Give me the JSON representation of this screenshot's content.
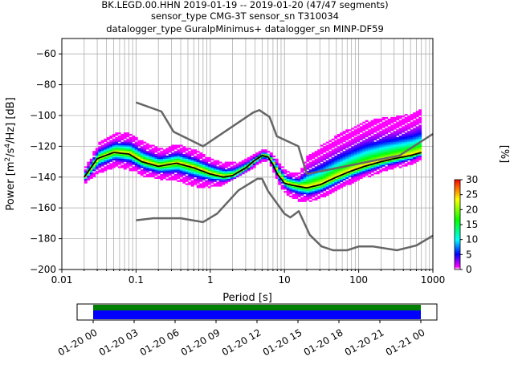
{
  "title": {
    "line1": "BK.LEGD.00.HHN   2019-01-19 -- 2019-01-20  (47/47 segments)",
    "line2": "sensor_type CMG-3T sensor_sn T310034",
    "line3": "datalogger_type GuralpMinimus+ datalogger_sn MINP-DF59"
  },
  "chart_data": [
    {
      "type": "heatmap",
      "title": "BK.LEGD.00.HHN   2019-01-19 -- 2019-01-20  (47/47 segments)",
      "xlabel": "Period [s]",
      "ylabel": "Power [m²/s⁴/Hz] [dB]",
      "x_scale": "log",
      "xlim": [
        0.01,
        1000
      ],
      "ylim": [
        -200,
        -50
      ],
      "x_ticks": [
        "0.01",
        "0.1",
        "1",
        "10",
        "100",
        "1000"
      ],
      "y_ticks": [
        "-200",
        "-180",
        "-160",
        "-140",
        "-120",
        "-100",
        "-80",
        "-60"
      ],
      "grid": true,
      "colorbar": {
        "label": "[%]",
        "range": [
          0,
          30
        ],
        "ticks": [
          "0",
          "5",
          "10",
          "15",
          "20",
          "25",
          "30"
        ],
        "colors": [
          "#ffffff",
          "#ff00ff",
          "#0000ff",
          "#00ffff",
          "#00ff00",
          "#ffff00",
          "#ff0000"
        ]
      },
      "mean_curve": {
        "color": "#000000",
        "x": [
          0.02,
          0.03,
          0.05,
          0.08,
          0.12,
          0.2,
          0.35,
          0.6,
          1.0,
          1.5,
          2.0,
          3.0,
          4.0,
          5.0,
          6.0,
          7.0,
          8.0,
          10.0,
          12.0,
          15.0,
          20.0,
          30.0,
          50.0,
          80.0,
          120.0,
          200.0,
          300.0,
          500.0,
          700.0
        ],
        "y": [
          -140,
          -128,
          -124,
          -125,
          -130,
          -133,
          -131,
          -134,
          -138,
          -140,
          -139,
          -134,
          -129,
          -126,
          -127,
          -132,
          -138,
          -144,
          -145,
          -146,
          -147,
          -145,
          -140,
          -136,
          -133,
          -130,
          -128,
          -126,
          -124
        ]
      },
      "envelope": {
        "x": [
          0.02,
          0.03,
          0.05,
          0.08,
          0.12,
          0.2,
          0.35,
          0.6,
          1.0,
          1.5,
          2.0,
          3.0,
          4.0,
          5.0,
          6.0,
          7.0,
          8.0,
          10.0,
          12.0,
          15.0,
          20.0,
          30.0,
          50.0,
          80.0,
          120.0,
          200.0,
          300.0,
          500.0,
          700.0
        ],
        "upper": [
          -134,
          -118,
          -112,
          -112,
          -117,
          -122,
          -119,
          -123,
          -128,
          -131,
          -131,
          -128,
          -125,
          -122,
          -124,
          -127,
          -130,
          -136,
          -137,
          -138,
          -126,
          -120,
          -113,
          -108,
          -104,
          -102,
          -101,
          -99,
          -96
        ],
        "lower": [
          -144,
          -138,
          -134,
          -136,
          -140,
          -142,
          -143,
          -147,
          -147,
          -146,
          -143,
          -138,
          -133,
          -130,
          -131,
          -138,
          -145,
          -151,
          -154,
          -156,
          -157,
          -154,
          -149,
          -144,
          -141,
          -137,
          -135,
          -132,
          -128
        ]
      },
      "noise_models": {
        "color": "#666666",
        "nhnm": {
          "x": [
            0.1,
            0.22,
            0.32,
            0.8,
            3.8,
            4.6,
            6.3,
            7.9,
            15.4,
            20.0
          ],
          "y": [
            -91.5,
            -97.4,
            -110.5,
            -120.0,
            -98.0,
            -96.5,
            -101.0,
            -113.5,
            -120.0,
            -138.0
          ]
        },
        "nhnm_long": {
          "x": [
            20.0,
            354.8,
            1000.0
          ],
          "y": [
            -138.0,
            -126.0,
            -112.0
          ]
        },
        "nlnm": {
          "x": [
            0.1,
            0.17,
            0.4,
            0.8,
            1.24,
            2.4,
            4.3,
            5.0,
            6.0,
            10.0,
            12.0,
            15.6,
            21.9,
            31.6,
            45.0,
            70.0,
            101.0,
            154.0,
            328.0,
            600.0,
            1000.0
          ],
          "y": [
            -168.0,
            -166.7,
            -166.7,
            -169.2,
            -163.7,
            -148.6,
            -141.1,
            -141.1,
            -149.0,
            -163.8,
            -166.2,
            -162.1,
            -177.5,
            -185.0,
            -187.5,
            -187.5,
            -185.0,
            -185.0,
            -187.5,
            -184.4,
            -178.0
          ]
        }
      }
    },
    {
      "type": "bar",
      "title": "",
      "x_ticks": [
        "01-20 00",
        "01-20 03",
        "01-20 06",
        "01-20 09",
        "01-20 12",
        "01-20 15",
        "01-20 18",
        "01-20 21",
        "01-21 00"
      ],
      "segments": {
        "start": "01-20 00",
        "end": "01-21 00",
        "colors": [
          "#008000",
          "#0000ff"
        ]
      }
    }
  ]
}
